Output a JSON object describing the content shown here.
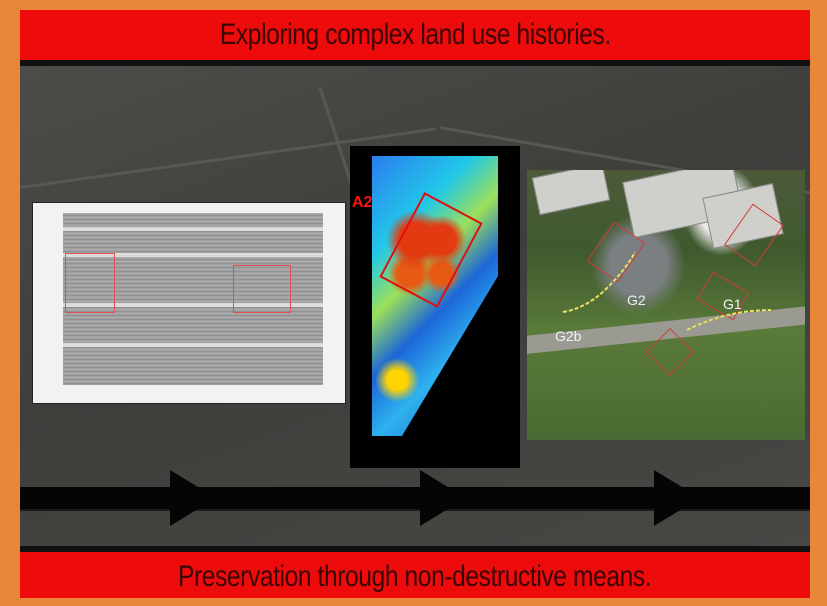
{
  "header": {
    "title": "Exploring complex land use histories."
  },
  "footer": {
    "caption": "Preservation through non-destructive means."
  },
  "heatmap": {
    "label": "A2"
  },
  "photo": {
    "labels": [
      "G2",
      "G1",
      "G2b"
    ]
  },
  "colors": {
    "banner_red": "#ee0b0b",
    "frame_orange": "#e8873a",
    "background_map": "#3a3a38"
  }
}
